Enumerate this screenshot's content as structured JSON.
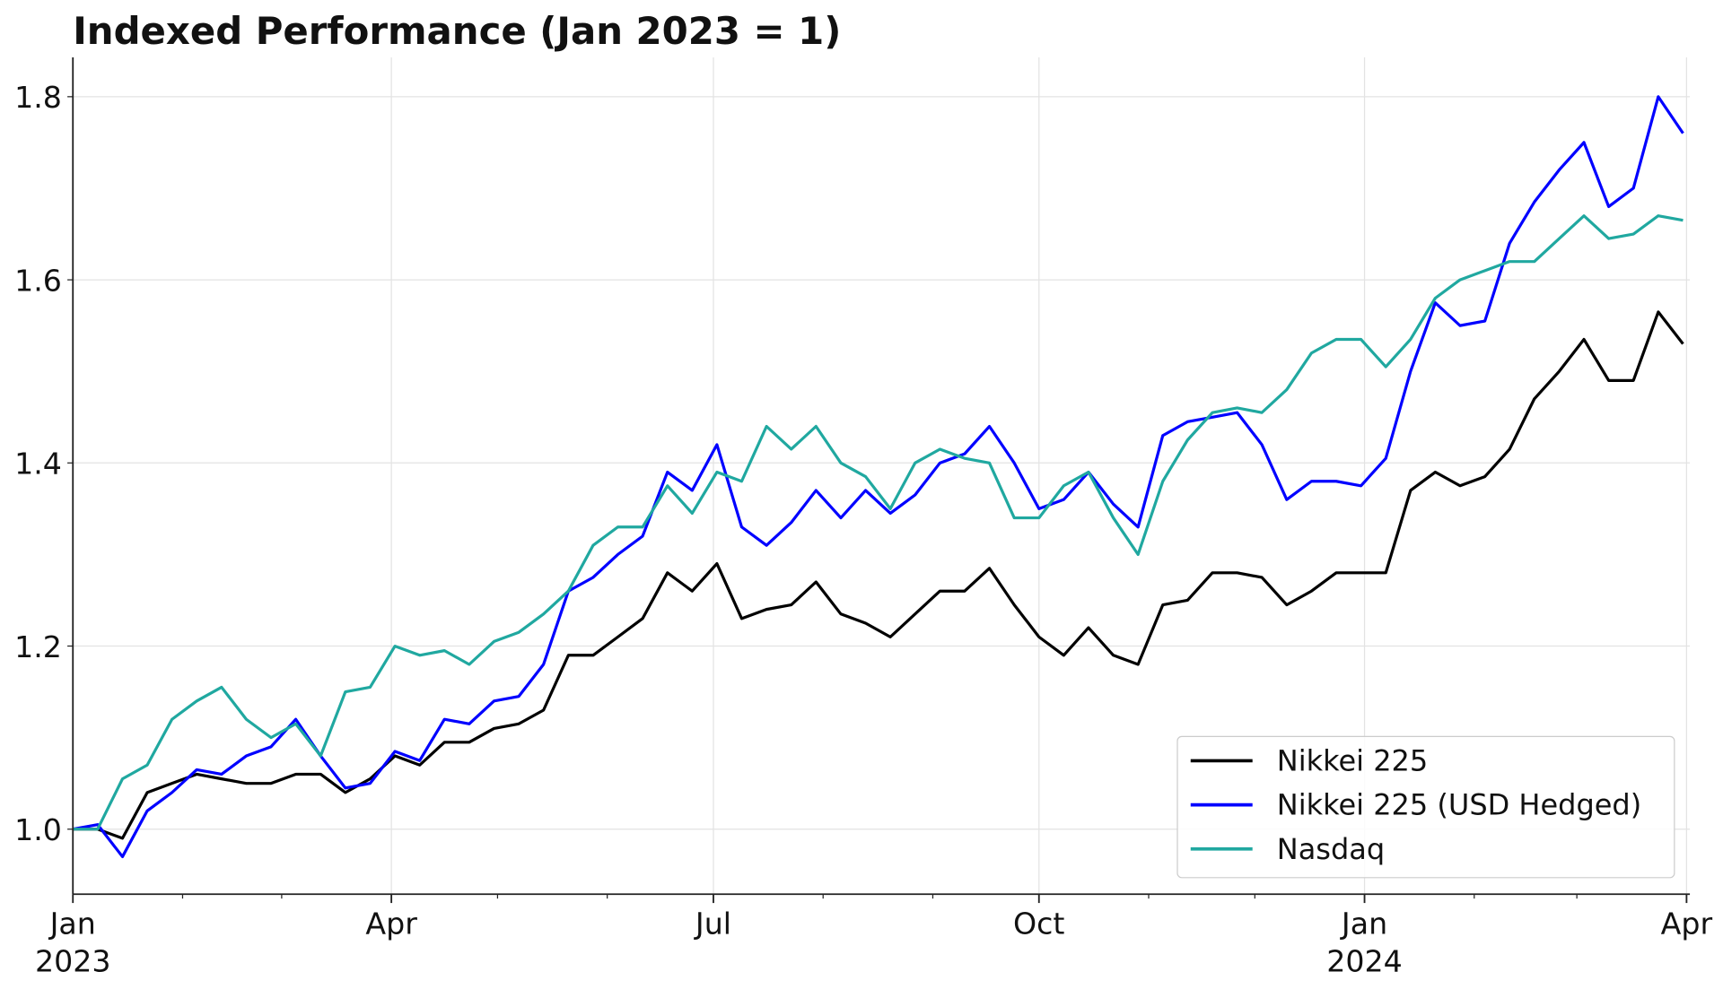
{
  "chart_data": {
    "type": "line",
    "title": "Indexed Performance (Jan 2023 = 1)",
    "xlabel": "",
    "ylabel": "",
    "x_unit": "days since 2023-01-01",
    "xlim": [
      0,
      456
    ],
    "ylim": [
      0.929,
      1.843
    ],
    "grid": true,
    "legend_placement": "lower-right",
    "yticks": [
      {
        "value": 1.0,
        "label": "1.0"
      },
      {
        "value": 1.2,
        "label": "1.2"
      },
      {
        "value": 1.4,
        "label": "1.4"
      },
      {
        "value": 1.6,
        "label": "1.6"
      },
      {
        "value": 1.8,
        "label": "1.8"
      }
    ],
    "xticks": [
      {
        "value": 0,
        "label": "Jan",
        "sublabel": "2023"
      },
      {
        "value": 90,
        "label": "Apr",
        "sublabel": ""
      },
      {
        "value": 181,
        "label": "Jul",
        "sublabel": ""
      },
      {
        "value": 273,
        "label": "Oct",
        "sublabel": ""
      },
      {
        "value": 365,
        "label": "Jan",
        "sublabel": "2024"
      },
      {
        "value": 456,
        "label": "Apr",
        "sublabel": ""
      }
    ],
    "minor_xticks": [
      31,
      59,
      120,
      151,
      212,
      243,
      304,
      334,
      396,
      425
    ],
    "x": [
      0,
      7,
      14,
      21,
      28,
      35,
      42,
      49,
      56,
      63,
      70,
      77,
      84,
      91,
      98,
      105,
      112,
      119,
      126,
      133,
      140,
      147,
      154,
      161,
      168,
      175,
      182,
      189,
      196,
      203,
      210,
      217,
      224,
      231,
      238,
      245,
      252,
      259,
      266,
      273,
      280,
      287,
      294,
      301,
      308,
      315,
      322,
      329,
      336,
      343,
      350,
      357,
      364,
      371,
      378,
      385,
      392,
      399,
      406,
      413,
      420,
      427,
      434,
      441,
      448,
      455
    ],
    "series": [
      {
        "name": "Nikkei 225",
        "color": "#000000",
        "values": [
          1.0,
          1.0,
          0.99,
          1.04,
          1.05,
          1.06,
          1.055,
          1.05,
          1.05,
          1.06,
          1.06,
          1.04,
          1.055,
          1.08,
          1.07,
          1.095,
          1.095,
          1.11,
          1.115,
          1.13,
          1.19,
          1.19,
          1.21,
          1.23,
          1.28,
          1.26,
          1.29,
          1.23,
          1.24,
          1.245,
          1.27,
          1.235,
          1.225,
          1.21,
          1.235,
          1.26,
          1.26,
          1.285,
          1.245,
          1.21,
          1.19,
          1.22,
          1.19,
          1.18,
          1.245,
          1.25,
          1.28,
          1.28,
          1.275,
          1.245,
          1.26,
          1.28,
          1.28,
          1.28,
          1.37,
          1.39,
          1.375,
          1.385,
          1.415,
          1.47,
          1.5,
          1.535,
          1.49,
          1.49,
          1.565,
          1.53
        ]
      },
      {
        "name": "Nikkei 225 (USD Hedged)",
        "color": "#0000ff",
        "values": [
          1.0,
          1.005,
          0.97,
          1.02,
          1.04,
          1.065,
          1.06,
          1.08,
          1.09,
          1.12,
          1.08,
          1.045,
          1.05,
          1.085,
          1.075,
          1.12,
          1.115,
          1.14,
          1.145,
          1.18,
          1.26,
          1.275,
          1.3,
          1.32,
          1.39,
          1.37,
          1.42,
          1.33,
          1.31,
          1.335,
          1.37,
          1.34,
          1.37,
          1.345,
          1.365,
          1.4,
          1.41,
          1.44,
          1.4,
          1.35,
          1.36,
          1.39,
          1.355,
          1.33,
          1.43,
          1.445,
          1.45,
          1.455,
          1.42,
          1.36,
          1.38,
          1.38,
          1.375,
          1.405,
          1.5,
          1.575,
          1.55,
          1.555,
          1.64,
          1.685,
          1.72,
          1.75,
          1.68,
          1.7,
          1.8,
          1.76
        ]
      },
      {
        "name": "Nasdaq",
        "color": "#20a8a0",
        "values": [
          1.0,
          1.0,
          1.055,
          1.07,
          1.12,
          1.14,
          1.155,
          1.12,
          1.1,
          1.115,
          1.08,
          1.15,
          1.155,
          1.2,
          1.19,
          1.195,
          1.18,
          1.205,
          1.215,
          1.235,
          1.26,
          1.31,
          1.33,
          1.33,
          1.375,
          1.345,
          1.39,
          1.38,
          1.44,
          1.415,
          1.44,
          1.4,
          1.385,
          1.35,
          1.4,
          1.415,
          1.405,
          1.4,
          1.34,
          1.34,
          1.375,
          1.39,
          1.34,
          1.3,
          1.38,
          1.425,
          1.455,
          1.46,
          1.455,
          1.48,
          1.52,
          1.535,
          1.535,
          1.505,
          1.535,
          1.58,
          1.6,
          1.61,
          1.62,
          1.62,
          1.645,
          1.67,
          1.645,
          1.65,
          1.67,
          1.665
        ]
      }
    ]
  }
}
